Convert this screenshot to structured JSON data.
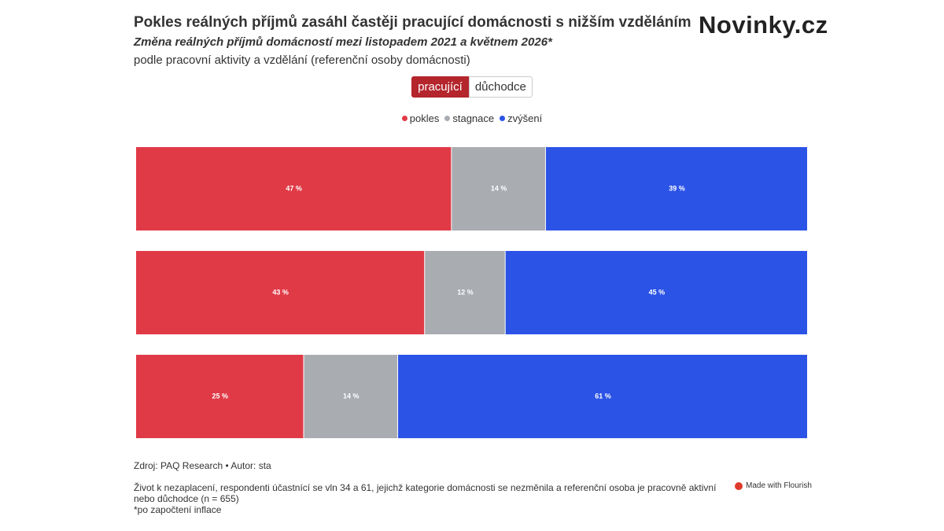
{
  "chart_data": {
    "type": "stacked_bar_horizontal",
    "title": "Pokles reálných příjmů zasáhl častěji pracující domácnosti s nižším vzděláním",
    "subtitle": "Změna reálných příjmů domácností mezi listopadem 2021 a květnem 2026*",
    "description": "podle pracovní aktivity a vzdělání (referenční osoby domácnosti)",
    "logo": "Novinky.cz",
    "filters": [
      "pracující",
      "důchodce"
    ],
    "categories": [
      null,
      null,
      null
    ],
    "xlim": [
      0,
      100
    ],
    "legend": "top",
    "series": [
      {
        "name": "pokles",
        "color": "#e03a47",
        "values": [
          47,
          43,
          25
        ],
        "value_labels": [
          "47 %",
          "43 %",
          "25 %"
        ]
      },
      {
        "name": "stagnace",
        "color": "#a9acb1",
        "values": [
          14,
          12,
          14
        ],
        "value_labels": [
          "14 %",
          "12 %",
          "14 %"
        ]
      },
      {
        "name": "zvýšení",
        "color": "#2b53e6",
        "values": [
          39,
          45,
          61
        ],
        "value_labels": [
          "39 %",
          "45 %",
          "61 %"
        ]
      }
    ],
    "source": "Zdroj: PAQ Research • Autor: sta",
    "notes": [
      "Život k nezaplacení, respondenti účastnící se vln 34 a 61, jejichž kategorie domácnosti se nezměnila a referenční osoba je pracovně aktivní",
      "nebo důchodce (n = 655)",
      "*po započtení inflace"
    ],
    "credit": "Made with Flourish"
  }
}
